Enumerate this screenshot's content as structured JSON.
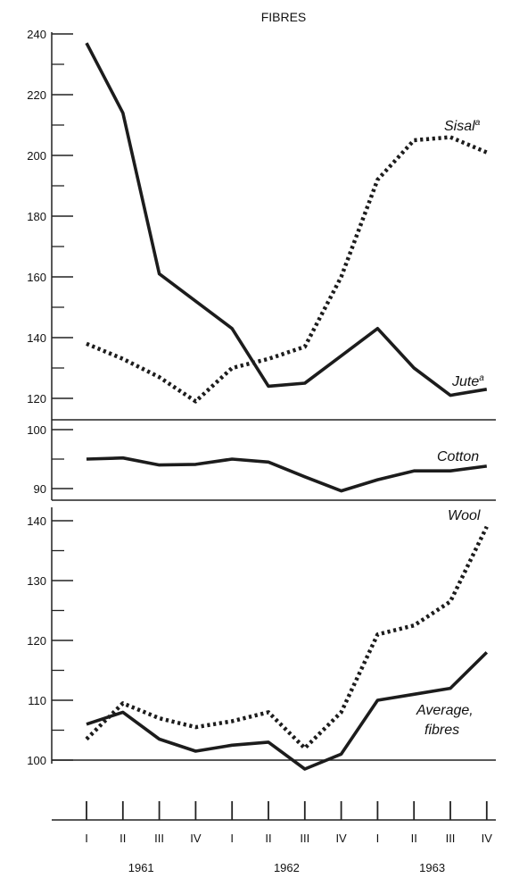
{
  "chart_data": {
    "type": "line",
    "title": "FIBRES",
    "x": {
      "quarters": [
        "I",
        "II",
        "III",
        "IV",
        "I",
        "II",
        "III",
        "IV",
        "I",
        "II",
        "III",
        "IV"
      ],
      "years": [
        "1961",
        "1962",
        "1963"
      ]
    },
    "panels": [
      {
        "id": "top",
        "ylim": [
          120,
          240
        ],
        "yticks": [
          120,
          140,
          160,
          180,
          200,
          220,
          240
        ],
        "series": [
          {
            "name": "Jute",
            "name_superscript": "a",
            "style": "solid",
            "values": [
              237,
              214,
              161,
              152,
              143,
              124,
              125,
              134,
              143,
              130,
              121,
              123
            ]
          },
          {
            "name": "Sisal",
            "name_superscript": "a",
            "style": "dotted",
            "values": [
              138,
              133,
              127,
              119,
              130,
              133,
              137,
              160,
              192,
              205,
              206,
              201
            ]
          }
        ]
      },
      {
        "id": "middle",
        "ylim": [
          90,
          100
        ],
        "yticks": [
          90,
          100
        ],
        "series": [
          {
            "name": "Cotton",
            "style": "solid",
            "values": [
              95,
              95.2,
              94,
              94.1,
              95,
              94.5,
              92,
              89.6,
              91.5,
              93,
              93,
              93.8
            ]
          }
        ]
      },
      {
        "id": "bottom",
        "ylim": [
          100,
          140
        ],
        "yticks": [
          100,
          110,
          120,
          130,
          140
        ],
        "series": [
          {
            "name": "Wool",
            "style": "dotted",
            "values": [
              103.5,
              109.5,
              107,
              105.5,
              106.5,
              108,
              102,
              108,
              121,
              122.5,
              126.5,
              139
            ]
          },
          {
            "name": "Average,",
            "name_line2": "fibres",
            "style": "solid",
            "values": [
              106,
              108,
              103.5,
              101.5,
              102.5,
              103,
              98.5,
              101,
              110,
              111,
              112,
              118
            ]
          }
        ]
      }
    ]
  }
}
